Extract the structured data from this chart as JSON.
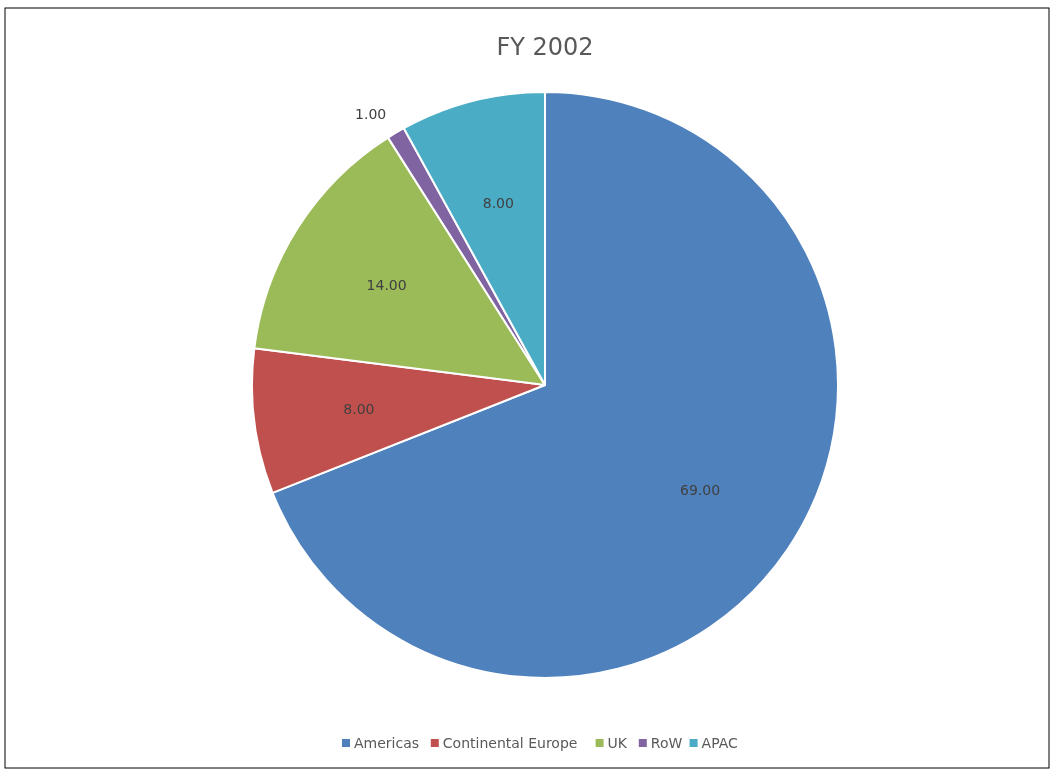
{
  "chart_data": {
    "type": "pie",
    "title": "FY 2002",
    "categories": [
      "Americas",
      "Continental Europe",
      "UK",
      "RoW",
      "APAC"
    ],
    "values": [
      69,
      8,
      14,
      1,
      8
    ],
    "value_labels": [
      "69.00",
      "8.00",
      "14.00",
      "1.00",
      "8.00"
    ],
    "colors": [
      "#4f81bd",
      "#c0504d",
      "#9bbb59",
      "#8064a2",
      "#4bacc6"
    ],
    "legend": "bottom"
  }
}
